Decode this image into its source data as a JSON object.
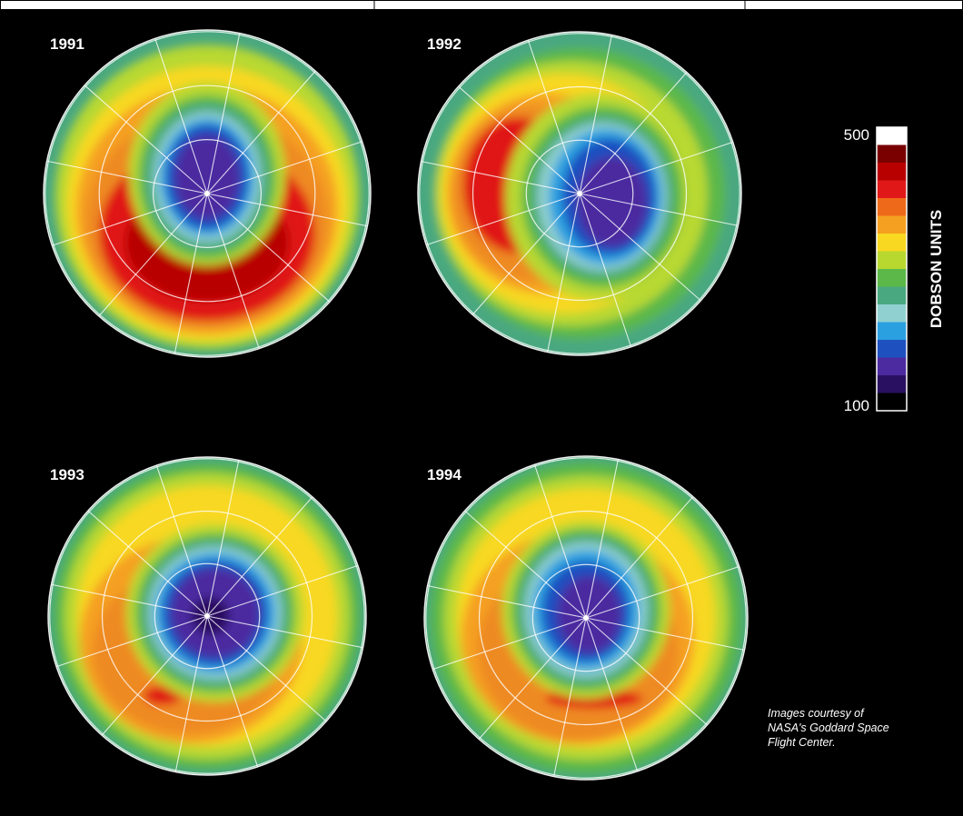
{
  "panels": [
    {
      "label": "1991"
    },
    {
      "label": "1992"
    },
    {
      "label": "1993"
    },
    {
      "label": "1994"
    }
  ],
  "legend": {
    "title": "DOBSON UNITS",
    "max": 500,
    "min": 100
  },
  "credit": [
    "Images courtesy of",
    "NASA's Goddard Space",
    "Flight Center."
  ]
}
